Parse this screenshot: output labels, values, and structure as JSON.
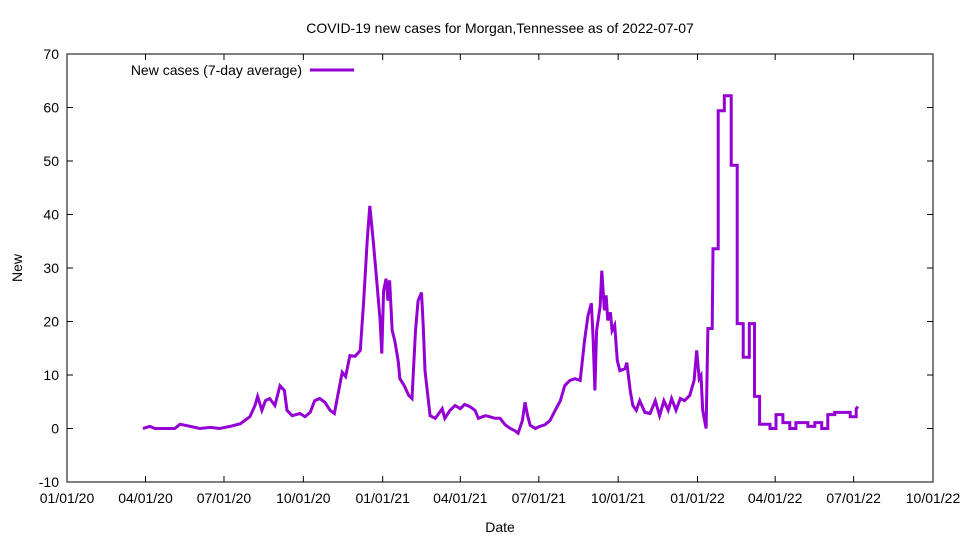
{
  "chart_data": {
    "type": "line",
    "title": "COVID-19 new cases for Morgan,Tennessee as of 2022-07-07",
    "xlabel": "Date",
    "ylabel": "New",
    "x_units": "days since 01/01/20",
    "xlim": [
      0,
      1004
    ],
    "ylim": [
      -10,
      70
    ],
    "grid": false,
    "legend_position": "top-left",
    "x_ticks": [
      {
        "value": 0,
        "label": "01/01/20"
      },
      {
        "value": 91,
        "label": "04/01/20"
      },
      {
        "value": 182,
        "label": "07/01/20"
      },
      {
        "value": 274,
        "label": "10/01/20"
      },
      {
        "value": 366,
        "label": "01/01/21"
      },
      {
        "value": 456,
        "label": "04/01/21"
      },
      {
        "value": 547,
        "label": "07/01/21"
      },
      {
        "value": 639,
        "label": "10/01/21"
      },
      {
        "value": 731,
        "label": "01/01/22"
      },
      {
        "value": 821,
        "label": "04/01/22"
      },
      {
        "value": 912,
        "label": "07/01/22"
      },
      {
        "value": 1004,
        "label": "10/01/22"
      }
    ],
    "y_ticks": [
      {
        "value": -10,
        "label": "-10"
      },
      {
        "value": 0,
        "label": "0"
      },
      {
        "value": 10,
        "label": "10"
      },
      {
        "value": 20,
        "label": "20"
      },
      {
        "value": 30,
        "label": "30"
      },
      {
        "value": 40,
        "label": "40"
      },
      {
        "value": 50,
        "label": "50"
      },
      {
        "value": 60,
        "label": "60"
      },
      {
        "value": 70,
        "label": "70"
      }
    ],
    "series": [
      {
        "name": "New cases (7-day average)",
        "color": "#9400D3",
        "points": [
          [
            88,
            0
          ],
          [
            96,
            0.4
          ],
          [
            102,
            0
          ],
          [
            125,
            0
          ],
          [
            131,
            0.8
          ],
          [
            143,
            0.4
          ],
          [
            154,
            0
          ],
          [
            166,
            0.2
          ],
          [
            177,
            0
          ],
          [
            189,
            0.4
          ],
          [
            201,
            0.9
          ],
          [
            206,
            1.5
          ],
          [
            212,
            2.2
          ],
          [
            218,
            4.3
          ],
          [
            221,
            6
          ],
          [
            226,
            3.4
          ],
          [
            230,
            5.2
          ],
          [
            235,
            5.6
          ],
          [
            241,
            4.3
          ],
          [
            247,
            8
          ],
          [
            252,
            7.1
          ],
          [
            255,
            3.4
          ],
          [
            261,
            2.4
          ],
          [
            270,
            2.8
          ],
          [
            276,
            2.2
          ],
          [
            282,
            3
          ],
          [
            287,
            5.2
          ],
          [
            293,
            5.6
          ],
          [
            299,
            4.9
          ],
          [
            305,
            3.4
          ],
          [
            310,
            2.8
          ],
          [
            314,
            6.2
          ],
          [
            319,
            10.5
          ],
          [
            323,
            9.7
          ],
          [
            328,
            13.6
          ],
          [
            334,
            13.5
          ],
          [
            340,
            14.6
          ],
          [
            344,
            23.9
          ],
          [
            348,
            35.1
          ],
          [
            351,
            41.6
          ],
          [
            355,
            35.1
          ],
          [
            359,
            27.7
          ],
          [
            363,
            20.2
          ],
          [
            365,
            14
          ],
          [
            367,
            25.8
          ],
          [
            370,
            28
          ],
          [
            372,
            23.9
          ],
          [
            374,
            27.7
          ],
          [
            377,
            18.3
          ],
          [
            380,
            16.4
          ],
          [
            384,
            12.6
          ],
          [
            386,
            9.3
          ],
          [
            391,
            8
          ],
          [
            396,
            6.2
          ],
          [
            400,
            5.6
          ],
          [
            404,
            18.3
          ],
          [
            407,
            23.9
          ],
          [
            411,
            25.4
          ],
          [
            413,
            19.3
          ],
          [
            415,
            10.8
          ],
          [
            419,
            5.2
          ],
          [
            421,
            2.4
          ],
          [
            427,
            1.9
          ],
          [
            432,
            3
          ],
          [
            435,
            3.7
          ],
          [
            438,
            1.9
          ],
          [
            444,
            3.4
          ],
          [
            450,
            4.3
          ],
          [
            456,
            3.7
          ],
          [
            461,
            4.5
          ],
          [
            467,
            4.1
          ],
          [
            473,
            3.4
          ],
          [
            477,
            1.9
          ],
          [
            485,
            2.4
          ],
          [
            490,
            2.2
          ],
          [
            496,
            1.9
          ],
          [
            502,
            1.9
          ],
          [
            508,
            0.7
          ],
          [
            514,
            0
          ],
          [
            519,
            -0.4
          ],
          [
            523,
            -0.9
          ],
          [
            528,
            1.5
          ],
          [
            531,
            4.9
          ],
          [
            534,
            2.4
          ],
          [
            537,
            0.6
          ],
          [
            543,
            0
          ],
          [
            548,
            0.4
          ],
          [
            554,
            0.7
          ],
          [
            560,
            1.5
          ],
          [
            566,
            3.4
          ],
          [
            572,
            5.2
          ],
          [
            577,
            8
          ],
          [
            583,
            9
          ],
          [
            589,
            9.3
          ],
          [
            595,
            9
          ],
          [
            600,
            16.4
          ],
          [
            604,
            21.1
          ],
          [
            608,
            23.4
          ],
          [
            610,
            16.4
          ],
          [
            612,
            7.1
          ],
          [
            614,
            18.3
          ],
          [
            618,
            22.8
          ],
          [
            620,
            29.5
          ],
          [
            623,
            22.1
          ],
          [
            625,
            24.9
          ],
          [
            627,
            20.2
          ],
          [
            630,
            21.7
          ],
          [
            632,
            18.3
          ],
          [
            635,
            19.3
          ],
          [
            638,
            12.7
          ],
          [
            641,
            10.8
          ],
          [
            647,
            11.2
          ],
          [
            649,
            12.3
          ],
          [
            653,
            7.1
          ],
          [
            656,
            4.3
          ],
          [
            660,
            3.4
          ],
          [
            664,
            5.2
          ],
          [
            670,
            3
          ],
          [
            676,
            2.8
          ],
          [
            682,
            5.2
          ],
          [
            687,
            2.4
          ],
          [
            692,
            5.2
          ],
          [
            697,
            3.4
          ],
          [
            701,
            5.6
          ],
          [
            706,
            3.4
          ],
          [
            711,
            5.6
          ],
          [
            716,
            5.2
          ],
          [
            722,
            6.2
          ],
          [
            727,
            9
          ],
          [
            730,
            14.6
          ],
          [
            733,
            9.3
          ],
          [
            735,
            9.9
          ],
          [
            737,
            3.4
          ],
          [
            741,
            0
          ],
          [
            743,
            18.7
          ],
          [
            748,
            18.7
          ],
          [
            749,
            33.6
          ],
          [
            755,
            33.6
          ],
          [
            755,
            59.4
          ],
          [
            762,
            59.4
          ],
          [
            762,
            62.2
          ],
          [
            770,
            62.2
          ],
          [
            770,
            49.2
          ],
          [
            777,
            49.2
          ],
          [
            777,
            19.6
          ],
          [
            784,
            19.6
          ],
          [
            784,
            13.3
          ],
          [
            791,
            13.3
          ],
          [
            791,
            19.6
          ],
          [
            797,
            19.6
          ],
          [
            797,
            6
          ],
          [
            803,
            6
          ],
          [
            803,
            0.8
          ],
          [
            815,
            0.8
          ],
          [
            815,
            0
          ],
          [
            822,
            0
          ],
          [
            822,
            2.6
          ],
          [
            830,
            2.6
          ],
          [
            830,
            1.1
          ],
          [
            838,
            1.1
          ],
          [
            838,
            0
          ],
          [
            845,
            0
          ],
          [
            845,
            1.1
          ],
          [
            859,
            1.1
          ],
          [
            859,
            0.4
          ],
          [
            867,
            0.4
          ],
          [
            867,
            1.1
          ],
          [
            875,
            1.1
          ],
          [
            875,
            0
          ],
          [
            882,
            0
          ],
          [
            882,
            2.6
          ],
          [
            890,
            2.6
          ],
          [
            890,
            3
          ],
          [
            908,
            3
          ],
          [
            908,
            2.2
          ],
          [
            915,
            2.2
          ],
          [
            915,
            3.7
          ],
          [
            917,
            4.1
          ]
        ]
      }
    ]
  }
}
